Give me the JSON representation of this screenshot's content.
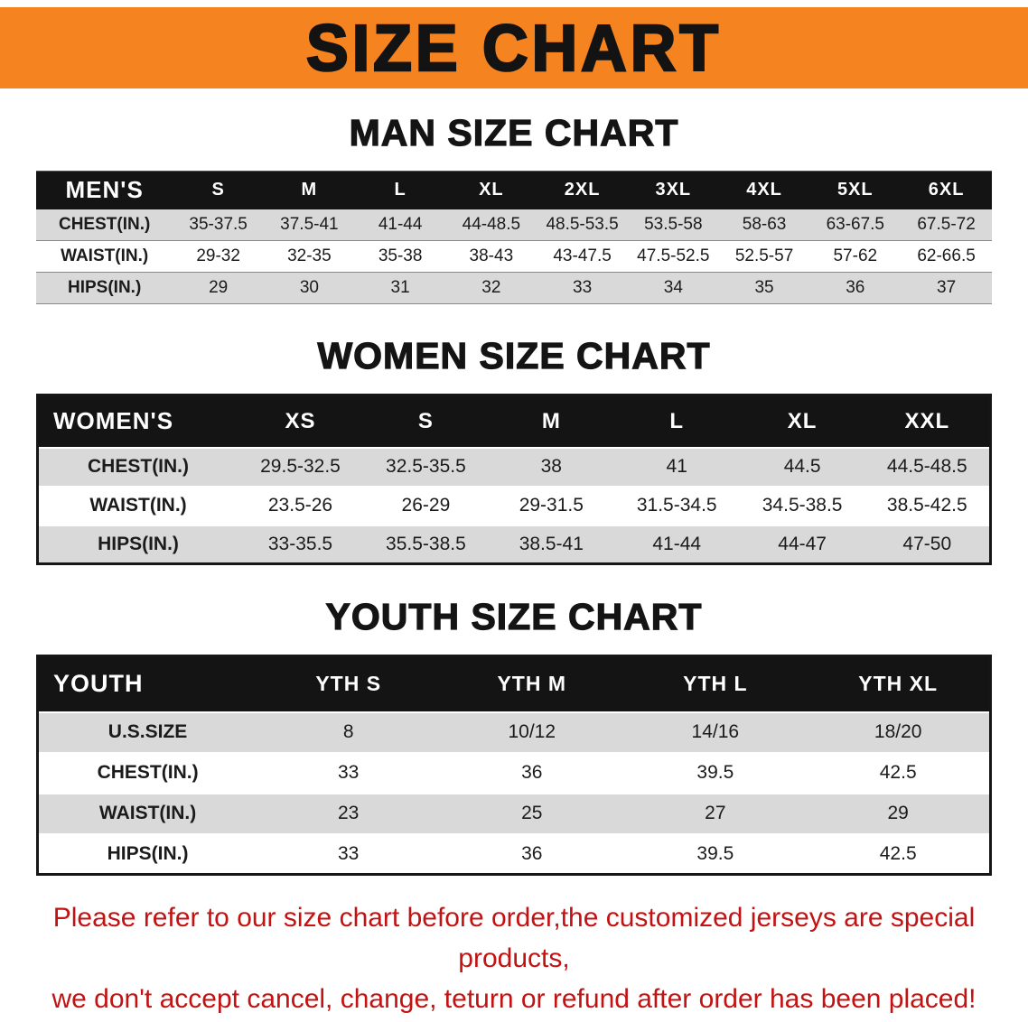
{
  "banner": {
    "title": "SIZE CHART"
  },
  "sections": [
    {
      "heading": "MAN SIZE CHART",
      "corner_label": "MEN'S",
      "columns": [
        "S",
        "M",
        "L",
        "XL",
        "2XL",
        "3XL",
        "4XL",
        "5XL",
        "6XL"
      ],
      "rows": [
        {
          "label": "CHEST(IN.)",
          "values": [
            "35-37.5",
            "37.5-41",
            "41-44",
            "44-48.5",
            "48.5-53.5",
            "53.5-58",
            "58-63",
            "63-67.5",
            "67.5-72"
          ]
        },
        {
          "label": "WAIST(IN.)",
          "values": [
            "29-32",
            "32-35",
            "35-38",
            "38-43",
            "43-47.5",
            "47.5-52.5",
            "52.5-57",
            "57-62",
            "62-66.5"
          ]
        },
        {
          "label": "HIPS(IN.)",
          "values": [
            "29",
            "30",
            "31",
            "32",
            "33",
            "34",
            "35",
            "36",
            "37"
          ]
        }
      ]
    },
    {
      "heading": "WOMEN SIZE CHART",
      "corner_label": "WOMEN'S",
      "columns": [
        "XS",
        "S",
        "M",
        "L",
        "XL",
        "XXL"
      ],
      "rows": [
        {
          "label": "CHEST(IN.)",
          "values": [
            "29.5-32.5",
            "32.5-35.5",
            "38",
            "41",
            "44.5",
            "44.5-48.5"
          ]
        },
        {
          "label": "WAIST(IN.)",
          "values": [
            "23.5-26",
            "26-29",
            "29-31.5",
            "31.5-34.5",
            "34.5-38.5",
            "38.5-42.5"
          ]
        },
        {
          "label": "HIPS(IN.)",
          "values": [
            "33-35.5",
            "35.5-38.5",
            "38.5-41",
            "41-44",
            "44-47",
            "47-50"
          ]
        }
      ]
    },
    {
      "heading": "YOUTH SIZE CHART",
      "corner_label": "YOUTH",
      "columns": [
        "YTH S",
        "YTH M",
        "YTH L",
        "YTH XL"
      ],
      "rows": [
        {
          "label": "U.S.SIZE",
          "values": [
            "8",
            "10/12",
            "14/16",
            "18/20"
          ]
        },
        {
          "label": "CHEST(IN.)",
          "values": [
            "33",
            "36",
            "39.5",
            "42.5"
          ]
        },
        {
          "label": "WAIST(IN.)",
          "values": [
            "23",
            "25",
            "27",
            "29"
          ]
        },
        {
          "label": "HIPS(IN.)",
          "values": [
            "33",
            "36",
            "39.5",
            "42.5"
          ]
        }
      ]
    }
  ],
  "disclaimer": {
    "line1": "Please refer to our size chart before order,the customized jerseys are special products,",
    "line2": "we don't accept cancel, change, teturn or refund after order has been placed!"
  },
  "colors": {
    "banner_bg": "#f5831f",
    "header_bg": "#141414",
    "row_alt_bg": "#d9d9d9",
    "disclaimer_red": "#c31212"
  }
}
